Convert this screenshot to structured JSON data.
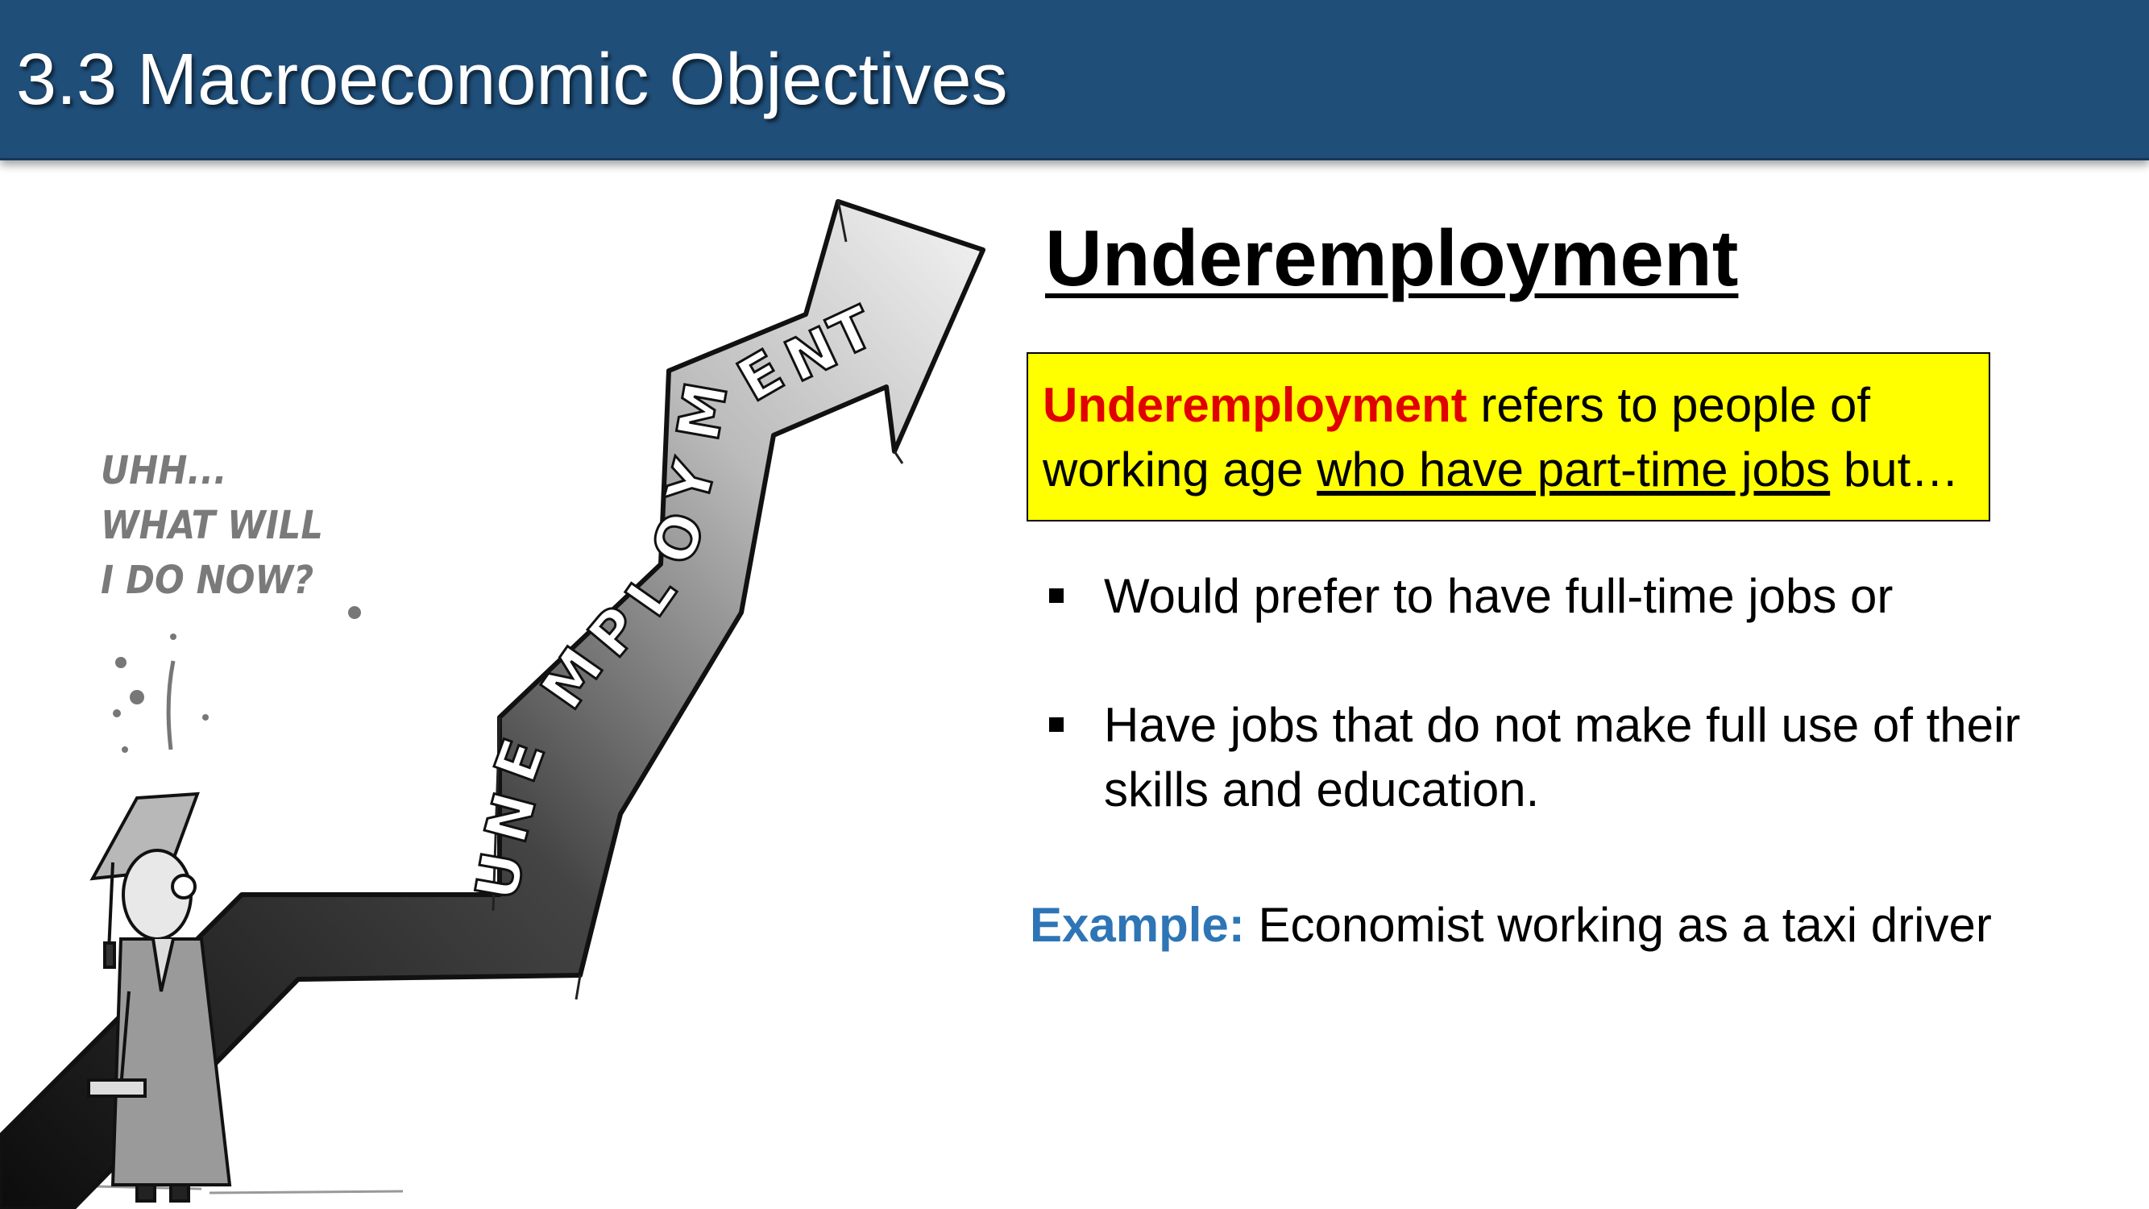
{
  "header": {
    "title": "3.3 Macroeconomic Objectives"
  },
  "cartoon": {
    "thought_lines": [
      "UHH...",
      "WHAT WILL",
      "I DO NOW?"
    ],
    "arrow_letters": [
      "U",
      "N",
      "E",
      "M",
      "P",
      "L",
      "O",
      "Y",
      "M",
      "E",
      "N",
      "T"
    ]
  },
  "main": {
    "heading": "Underemployment",
    "definition": {
      "term": "Underemployment",
      "text_1": " refers to people of working age ",
      "underlined": "who have part-time jobs",
      "text_2": " but…"
    },
    "bullets": [
      {
        "text": "Would prefer to have full-time jobs or"
      },
      {
        "text": "Have jobs that do not make full use of their skills and education."
      }
    ],
    "example": {
      "label": "Example:",
      "text": " Economist working as a taxi driver"
    }
  },
  "colors": {
    "header_bg": "#1f4e79",
    "box_bg": "#ffff00",
    "term": "#e00000",
    "example_label": "#2e75b6"
  }
}
